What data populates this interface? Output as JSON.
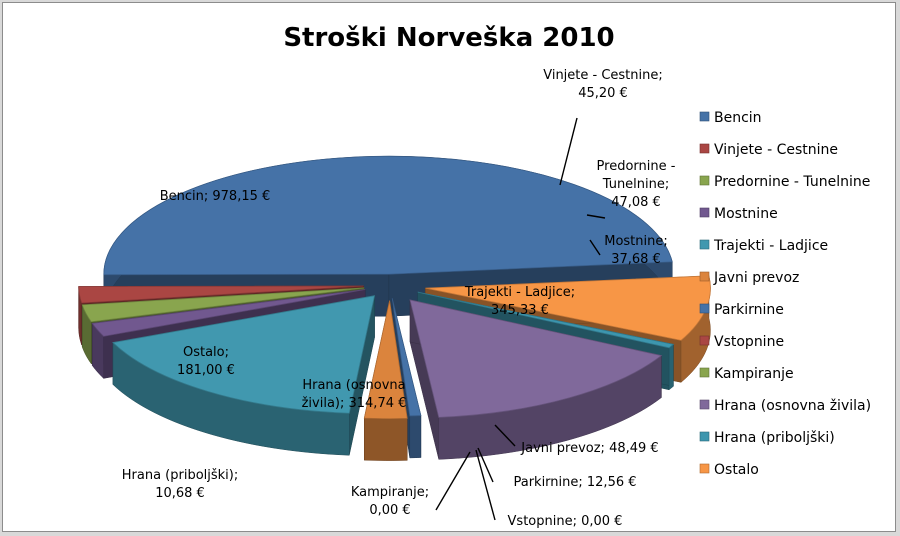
{
  "chart_data": {
    "type": "pie",
    "title": "Stroški Norveška 2010",
    "currency": "€",
    "legend_position": "right",
    "slices": [
      {
        "label": "Bencin",
        "value": 978.15,
        "value_text": "978,15 €",
        "color": "#4572a7"
      },
      {
        "label": "Vinjete - Cestnine",
        "value": 45.2,
        "value_text": "45,20 €",
        "color": "#aa4643"
      },
      {
        "label": "Predornine - Tunelnine",
        "value": 47.08,
        "value_text": "47,08 €",
        "color": "#89a54e"
      },
      {
        "label": "Mostnine",
        "value": 37.68,
        "value_text": "37,68 €",
        "color": "#71588f"
      },
      {
        "label": "Trajekti - Ladjice",
        "value": 345.33,
        "value_text": "345,33 €",
        "color": "#4198af"
      },
      {
        "label": "Javni prevoz",
        "value": 48.49,
        "value_text": "48,49 €",
        "color": "#db843d"
      },
      {
        "label": "Parkirnine",
        "value": 12.56,
        "value_text": "12,56 €",
        "color": "#4572a7"
      },
      {
        "label": "Vstopnine",
        "value": 0.0,
        "value_text": "0,00 €",
        "color": "#aa4643"
      },
      {
        "label": "Kampiranje",
        "value": 0.0,
        "value_text": "0,00 €",
        "color": "#89a54e"
      },
      {
        "label": "Hrana (osnovna živila)",
        "value": 314.74,
        "value_text": "314,74 €",
        "color": "#80699b"
      },
      {
        "label": "Hrana (priboljški)",
        "value": 10.68,
        "value_text": "10,68 €",
        "color": "#3d96ae"
      },
      {
        "label": "Ostalo",
        "value": 181.0,
        "value_text": "181,00 €",
        "color": "#f79646"
      }
    ]
  }
}
